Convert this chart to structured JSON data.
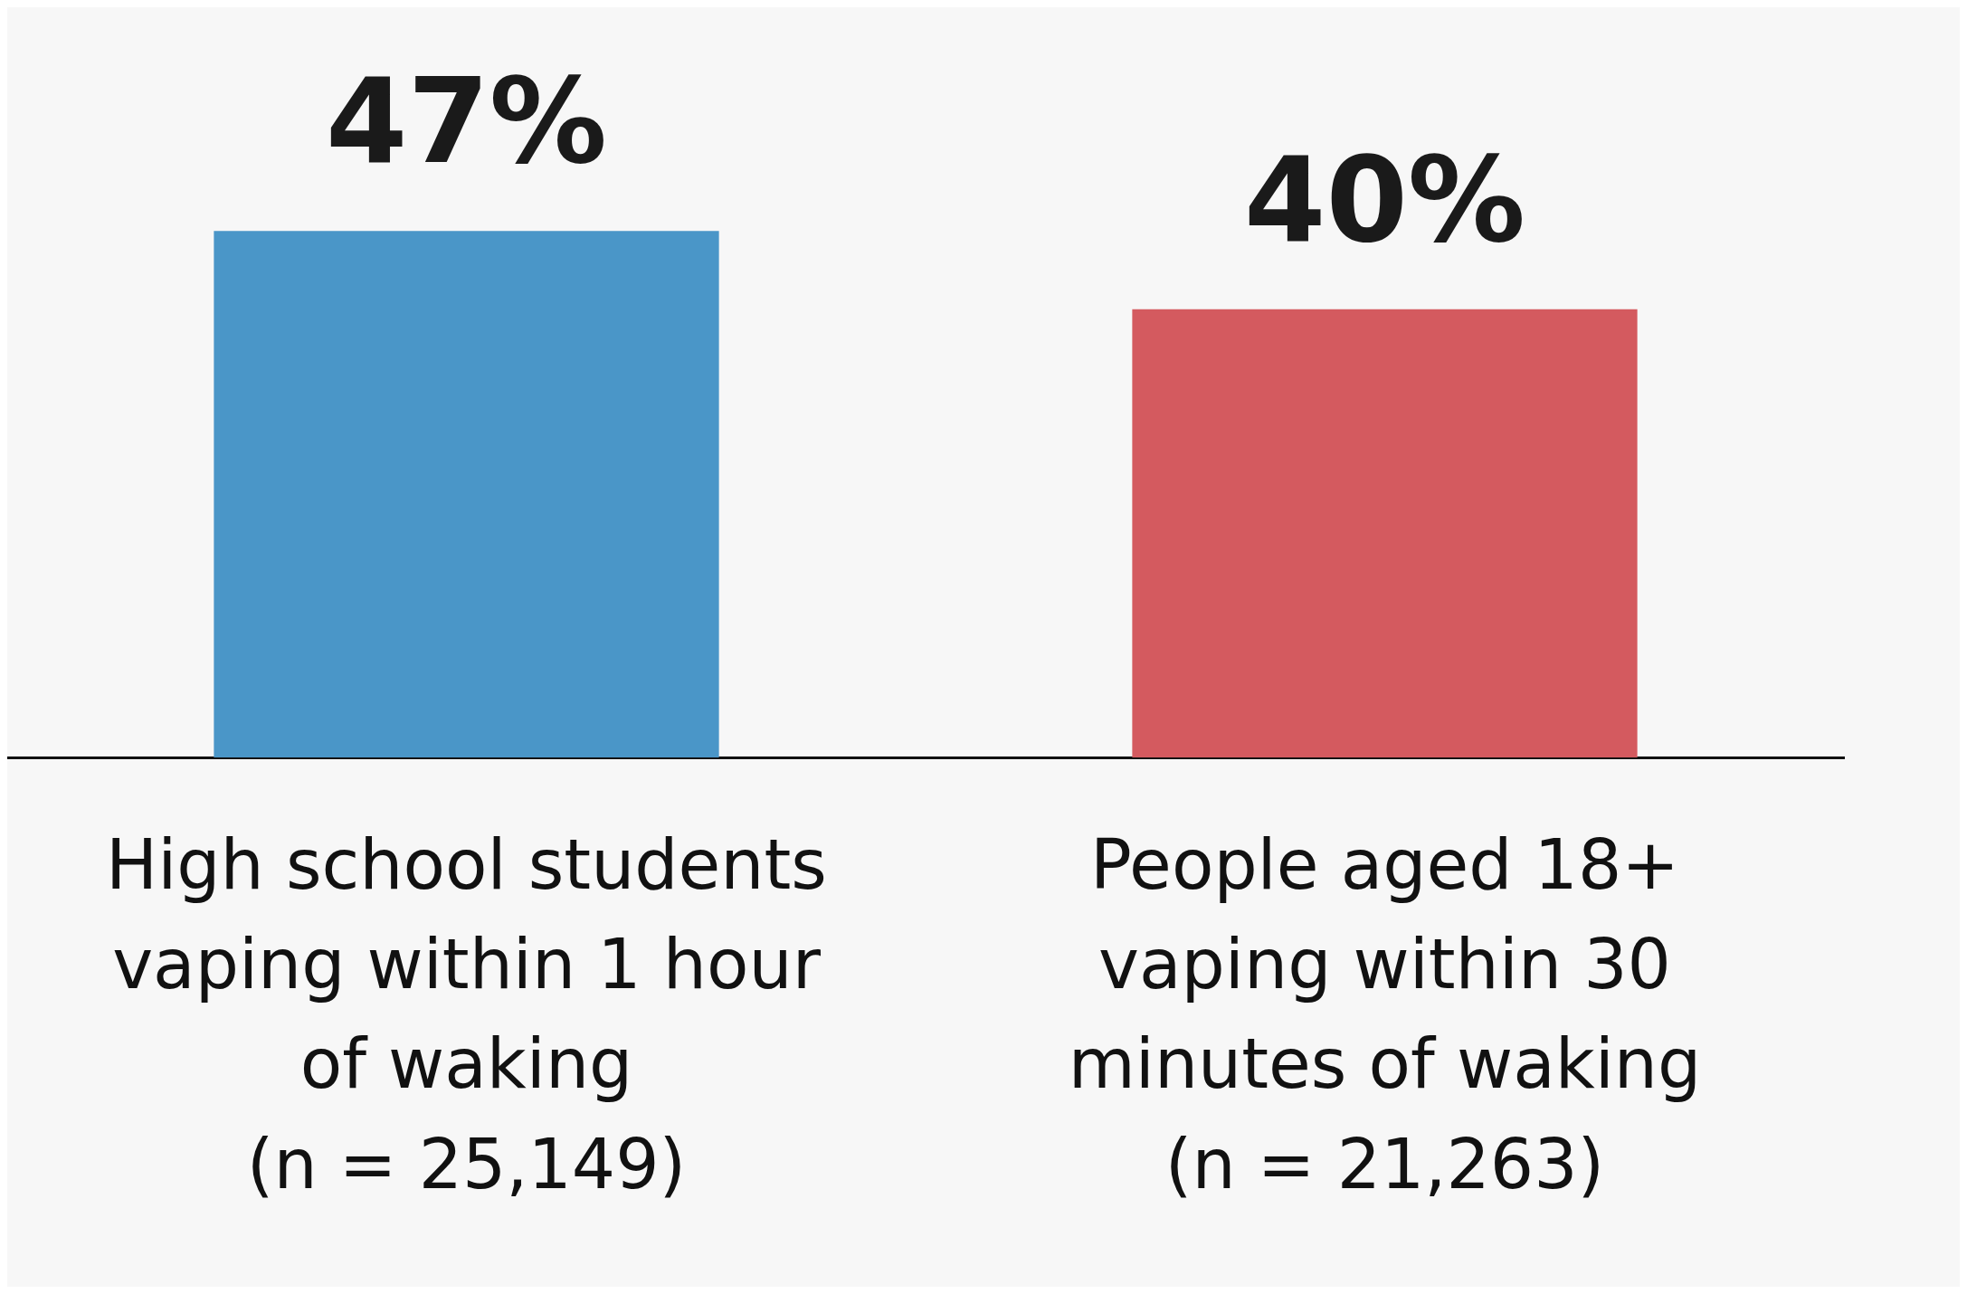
{
  "chart_data": {
    "type": "bar",
    "categories": [
      "High school students\nvaping within 1 hour\nof waking\n(n = 25,149)",
      "People aged 18+\nvaping within 30\nminutes of waking\n(n = 21,263)"
    ],
    "values": [
      47,
      40
    ],
    "colors": [
      "#4a96c8",
      "#d45a5f"
    ],
    "value_labels": [
      "47%",
      "40%"
    ],
    "tick_labels": "x",
    "grid": false,
    "legend": false
  }
}
